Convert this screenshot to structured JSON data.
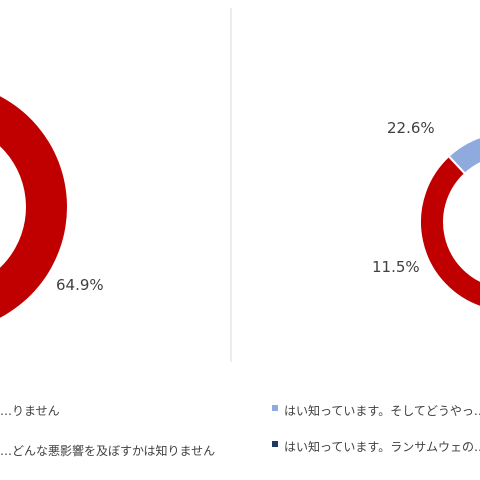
{
  "chart_data": [
    {
      "type": "pie",
      "style": "donut",
      "slices": [
        {
          "value": 64.9,
          "label": "64.9%",
          "color": "#c00000"
        }
      ],
      "legend": [
        {
          "text": "…りません"
        },
        {
          "text": "…どんな悪影響を及ぼすかは知りません"
        }
      ]
    },
    {
      "type": "pie",
      "style": "donut",
      "slices": [
        {
          "value": 22.6,
          "label": "22.6%",
          "color": "#8faadc"
        },
        {
          "value": 11.5,
          "label": "11.5%",
          "color": "#dae3f3"
        },
        {
          "value": 65.9,
          "label": "",
          "color": "#c00000"
        }
      ],
      "legend": [
        {
          "text": "はい知っています。そしてどうやっ…",
          "color": "#8faadc"
        },
        {
          "text": "はい知っています。ランサムウェの…",
          "color": "#1f3864"
        }
      ]
    }
  ],
  "colors": {
    "divider": "#d9d9d9",
    "text": "#404040"
  }
}
